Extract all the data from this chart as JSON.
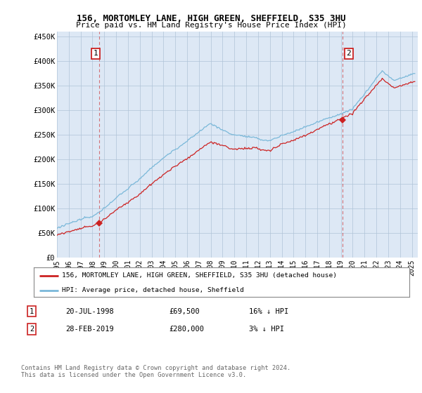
{
  "title_line1": "156, MORTOMLEY LANE, HIGH GREEN, SHEFFIELD, S35 3HU",
  "title_line2": "Price paid vs. HM Land Registry's House Price Index (HPI)",
  "legend_label1": "156, MORTOMLEY LANE, HIGH GREEN, SHEFFIELD, S35 3HU (detached house)",
  "legend_label2": "HPI: Average price, detached house, Sheffield",
  "annotation1_date": "20-JUL-1998",
  "annotation1_price": "£69,500",
  "annotation1_hpi": "16% ↓ HPI",
  "annotation2_date": "28-FEB-2019",
  "annotation2_price": "£280,000",
  "annotation2_hpi": "3% ↓ HPI",
  "footer": "Contains HM Land Registry data © Crown copyright and database right 2024.\nThis data is licensed under the Open Government Licence v3.0.",
  "sale1_year": 1998.55,
  "sale1_price": 69500,
  "sale2_year": 2019.16,
  "sale2_price": 280000,
  "yticks": [
    0,
    50000,
    100000,
    150000,
    200000,
    250000,
    300000,
    350000,
    400000,
    450000
  ],
  "ytick_labels": [
    "£0",
    "£50K",
    "£100K",
    "£150K",
    "£200K",
    "£250K",
    "£300K",
    "£350K",
    "£400K",
    "£450K"
  ],
  "xmin": 1995.0,
  "xmax": 2025.5,
  "ymin": 0,
  "ymax": 460000,
  "hpi_color": "#7ab8d9",
  "property_color": "#cc2222",
  "vline_color": "#cc2222",
  "plot_bg": "#dde8f5",
  "grid_color": "#b0c4d8"
}
